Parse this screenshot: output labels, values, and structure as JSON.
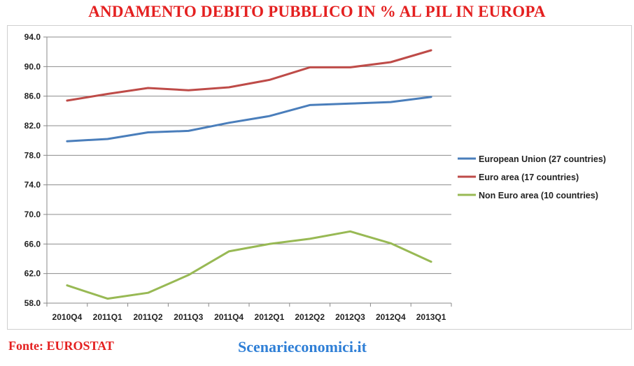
{
  "title": "ANDAMENTO DEBITO PUBBLICO IN % AL PIL IN EUROPA",
  "source": "Fonte: EUROSTAT",
  "site": "Scenarieconomici.it",
  "chart_data": {
    "type": "line",
    "title": "ANDAMENTO DEBITO PUBBLICO IN % AL PIL IN EUROPA",
    "xlabel": "",
    "ylabel": "",
    "categories": [
      "2010Q4",
      "2011Q1",
      "2011Q2",
      "2011Q3",
      "2011Q4",
      "2012Q1",
      "2012Q2",
      "2012Q3",
      "2012Q4",
      "2013Q1"
    ],
    "ylim": [
      58,
      94
    ],
    "yticks": [
      "58.0",
      "62.0",
      "66.0",
      "70.0",
      "74.0",
      "78.0",
      "82.0",
      "86.0",
      "90.0",
      "94.0"
    ],
    "grid": "horizontal",
    "legend_position": "right",
    "series": [
      {
        "name": "European Union (27 countries)",
        "color": "#4a7ebb",
        "values": [
          79.9,
          80.2,
          81.1,
          81.3,
          82.4,
          83.3,
          84.8,
          85.0,
          85.2,
          85.9
        ]
      },
      {
        "name": "Euro area (17 countries)",
        "color": "#be4b48",
        "values": [
          85.4,
          86.3,
          87.1,
          86.8,
          87.2,
          88.2,
          89.9,
          89.9,
          90.6,
          92.2
        ]
      },
      {
        "name": "Non Euro area (10 countries)",
        "color": "#98b954",
        "values": [
          60.4,
          58.6,
          59.4,
          61.8,
          65.0,
          66.0,
          66.7,
          67.7,
          66.1,
          63.6
        ]
      }
    ]
  }
}
